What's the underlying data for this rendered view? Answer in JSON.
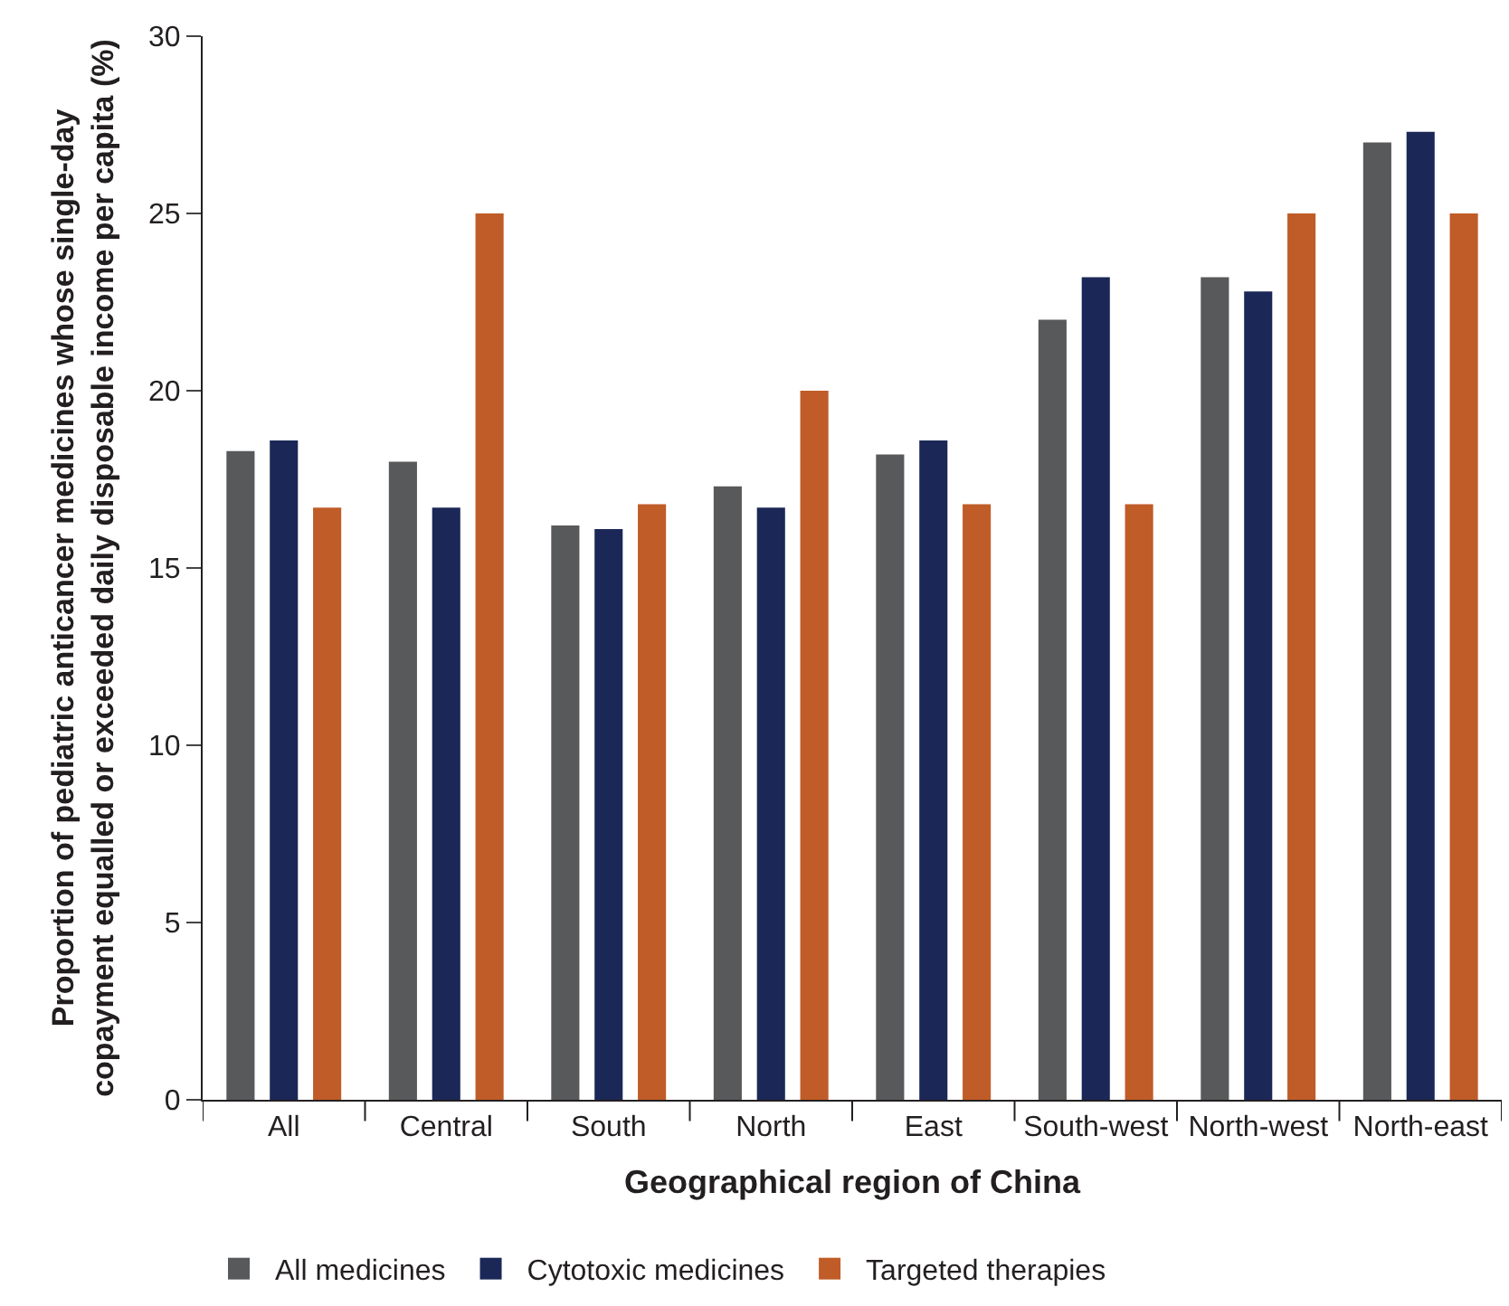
{
  "chart_data": {
    "type": "bar",
    "xlabel": "Geographical region of China",
    "ylabel": "Proportion of pediatric anticancer medicines whose single-day\ncopayment equalled or exceeded daily disposable income per capita (%)",
    "categories": [
      "All",
      "Central",
      "South",
      "North",
      "East",
      "South-west",
      "North-west",
      "North-east"
    ],
    "series": [
      {
        "name": "All medicines",
        "color": "#58595b",
        "values": [
          18.3,
          18.0,
          16.2,
          17.3,
          18.2,
          22.0,
          23.2,
          27.0
        ]
      },
      {
        "name": "Cytotoxic medicines",
        "color": "#1b2857",
        "values": [
          18.6,
          16.7,
          16.1,
          16.7,
          18.6,
          23.2,
          22.8,
          27.3
        ]
      },
      {
        "name": "Targeted therapies",
        "color": "#c05c28",
        "values": [
          16.7,
          25.0,
          16.8,
          20.0,
          16.8,
          16.8,
          25.0,
          25.0
        ]
      }
    ],
    "ylim": [
      0,
      30
    ],
    "yticks": [
      0,
      5,
      10,
      15,
      20,
      25,
      30
    ],
    "legend": "bottom"
  }
}
